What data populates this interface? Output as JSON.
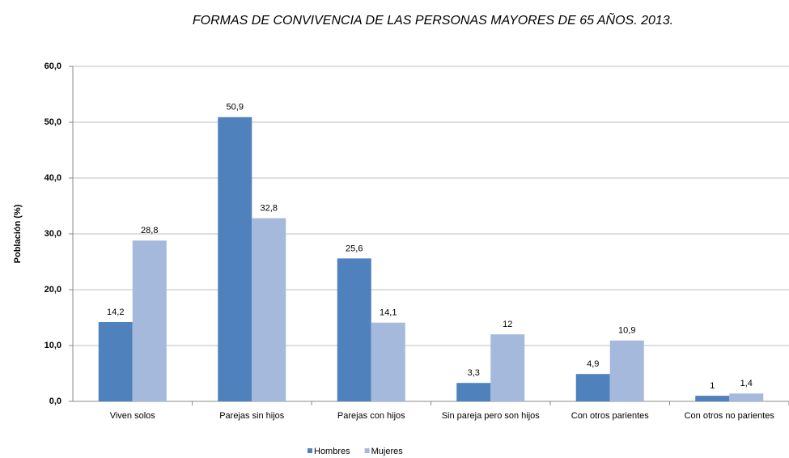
{
  "chart_data": {
    "type": "bar",
    "title": "FORMAS DE CONVIVENCIA DE LAS PERSONAS MAYORES DE 65 AÑOS. 2013.",
    "y_label": "Población (%)",
    "categories": [
      "Viven solos",
      "Parejas sin hijos",
      "Parejas con hijos",
      "Sin pareja pero son hijos",
      "Con otros parientes",
      "Con otros no parientes"
    ],
    "series": [
      {
        "name": "Hombres",
        "color": "#4f81bd",
        "values": [
          14.2,
          50.9,
          25.6,
          3.3,
          4.9,
          1
        ],
        "value_labels": [
          "14,2",
          "50,9",
          "25,6",
          "3,3",
          "4,9",
          "1"
        ]
      },
      {
        "name": "Mujeres",
        "color": "#a5b9dc",
        "values": [
          28.8,
          32.8,
          14.1,
          12,
          10.9,
          1.4
        ],
        "value_labels": [
          "28,8",
          "32,8",
          "14,1",
          "12",
          "10,9",
          "1,4"
        ]
      }
    ],
    "ylim": [
      0,
      60
    ],
    "yticks": [
      {
        "value": 0,
        "label": "0,0"
      },
      {
        "value": 10,
        "label": "10,0"
      },
      {
        "value": 20,
        "label": "20,0"
      },
      {
        "value": 30,
        "label": "30,0"
      },
      {
        "value": 40,
        "label": "40,0"
      },
      {
        "value": 50,
        "label": "50,0"
      },
      {
        "value": 60,
        "label": "60,0"
      }
    ],
    "grid": true,
    "legend": "bottom"
  }
}
